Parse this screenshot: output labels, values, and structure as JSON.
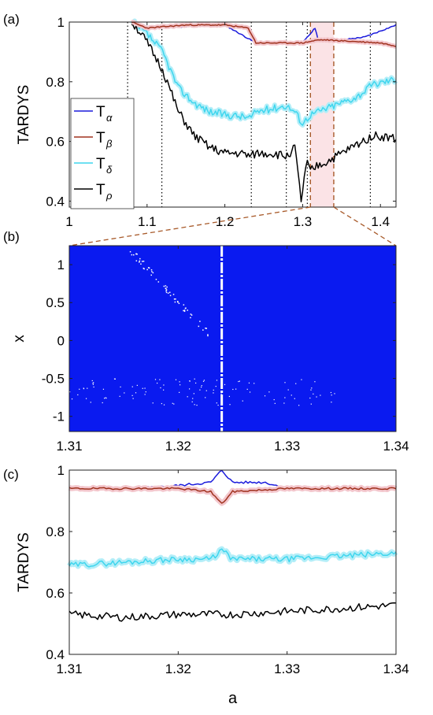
{
  "colors": {
    "alpha": "#1a1adc",
    "beta": "#a0321e",
    "delta": "#3fd6ee",
    "rho": "#000000",
    "band_beta": "#f3c6cc",
    "band_delta": "#b3eef8",
    "heatmap_bg": "#0a1af0",
    "bracket": "#a85a2a"
  },
  "chart_data": [
    {
      "panel_label": "(a)",
      "type": "line",
      "xlabel": "",
      "ylabel": "TARDYS",
      "xlim": [
        1.0,
        1.42
      ],
      "ylim": [
        0.38,
        1.0
      ],
      "xticks": [
        "1",
        "1.1",
        "1.2",
        "1.3",
        "1.4"
      ],
      "yticks": [
        "0.4",
        "0.6",
        "0.8",
        "1"
      ],
      "legend": {
        "placement": "left-middle",
        "entries": [
          {
            "base": "T",
            "sub": "α",
            "key": "alpha"
          },
          {
            "base": "T",
            "sub": "β",
            "key": "beta"
          },
          {
            "base": "T",
            "sub": "δ",
            "key": "delta"
          },
          {
            "base": "T",
            "sub": "ρ",
            "key": "rho"
          }
        ]
      },
      "vlines_dotted": [
        1.075,
        1.119,
        1.234,
        1.279,
        1.306,
        1.387
      ],
      "zoom_window": [
        1.31,
        1.34
      ],
      "series": [
        {
          "key": "alpha",
          "x": [
            1.08,
            1.1,
            1.2,
            1.24,
            1.3,
            1.316,
            1.32,
            1.33,
            1.35,
            1.38,
            1.4,
            1.42
          ],
          "values": [
            1.0,
            0.98,
            0.99,
            0.93,
            0.93,
            0.98,
            0.94,
            0.94,
            0.94,
            0.95,
            0.97,
            0.99
          ]
        },
        {
          "key": "beta",
          "x": [
            1.08,
            1.1,
            1.15,
            1.2,
            1.23,
            1.24,
            1.3,
            1.32,
            1.33,
            1.4,
            1.42
          ],
          "values": [
            1.0,
            0.98,
            0.99,
            0.99,
            0.98,
            0.93,
            0.93,
            0.94,
            0.94,
            0.93,
            0.92
          ]
        },
        {
          "key": "delta",
          "x": [
            1.08,
            1.09,
            1.1,
            1.12,
            1.14,
            1.16,
            1.18,
            1.2,
            1.234,
            1.24,
            1.26,
            1.279,
            1.29,
            1.3,
            1.31,
            1.33,
            1.35,
            1.37,
            1.39,
            1.42
          ],
          "values": [
            1.0,
            0.98,
            0.96,
            0.9,
            0.78,
            0.73,
            0.7,
            0.69,
            0.68,
            0.7,
            0.71,
            0.72,
            0.7,
            0.66,
            0.69,
            0.71,
            0.73,
            0.75,
            0.79,
            0.81
          ]
        },
        {
          "key": "rho",
          "x": [
            1.08,
            1.09,
            1.1,
            1.12,
            1.14,
            1.16,
            1.18,
            1.2,
            1.22,
            1.234,
            1.24,
            1.26,
            1.279,
            1.29,
            1.298,
            1.305,
            1.31,
            1.32,
            1.33,
            1.35,
            1.37,
            1.39,
            1.42
          ],
          "values": [
            1.0,
            0.97,
            0.93,
            0.84,
            0.7,
            0.62,
            0.58,
            0.56,
            0.56,
            0.55,
            0.56,
            0.56,
            0.55,
            0.58,
            0.4,
            0.53,
            0.5,
            0.52,
            0.53,
            0.56,
            0.59,
            0.62,
            0.61
          ]
        }
      ]
    },
    {
      "panel_label": "(b)",
      "type": "heatmap",
      "xlabel": "",
      "ylabel": "x",
      "xlim": [
        1.31,
        1.34
      ],
      "ylim": [
        -1.2,
        1.25
      ],
      "xticks": [
        "1.31",
        "1.32",
        "1.33",
        "1.34"
      ],
      "yticks": [
        "1",
        "0.5",
        "0",
        "-0.5",
        "-1"
      ],
      "white_line_x": 1.324
    },
    {
      "panel_label": "(c)",
      "type": "line",
      "xlabel": "a",
      "ylabel": "TARDYS",
      "xlim": [
        1.31,
        1.34
      ],
      "ylim": [
        0.4,
        1.0
      ],
      "xticks": [
        "1.31",
        "1.32",
        "1.33",
        "1.34"
      ],
      "yticks": [
        "0.4",
        "0.6",
        "0.8",
        "1"
      ],
      "series": [
        {
          "key": "alpha",
          "x": [
            1.31,
            1.316,
            1.32,
            1.323,
            1.324,
            1.325,
            1.328,
            1.33,
            1.334,
            1.34
          ],
          "values": [
            0.94,
            0.94,
            0.95,
            0.96,
            1.0,
            0.96,
            0.96,
            0.94,
            0.94,
            0.94
          ]
        },
        {
          "key": "beta",
          "x": [
            1.31,
            1.32,
            1.323,
            1.324,
            1.325,
            1.33,
            1.34
          ],
          "values": [
            0.94,
            0.94,
            0.93,
            0.89,
            0.93,
            0.94,
            0.94
          ]
        },
        {
          "key": "delta",
          "x": [
            1.31,
            1.315,
            1.32,
            1.323,
            1.324,
            1.325,
            1.33,
            1.335,
            1.34
          ],
          "values": [
            0.69,
            0.7,
            0.71,
            0.71,
            0.74,
            0.71,
            0.71,
            0.72,
            0.73
          ]
        },
        {
          "key": "rho",
          "x": [
            1.31,
            1.315,
            1.32,
            1.325,
            1.33,
            1.335,
            1.34
          ],
          "values": [
            0.53,
            0.52,
            0.53,
            0.53,
            0.54,
            0.55,
            0.56
          ]
        }
      ]
    }
  ]
}
